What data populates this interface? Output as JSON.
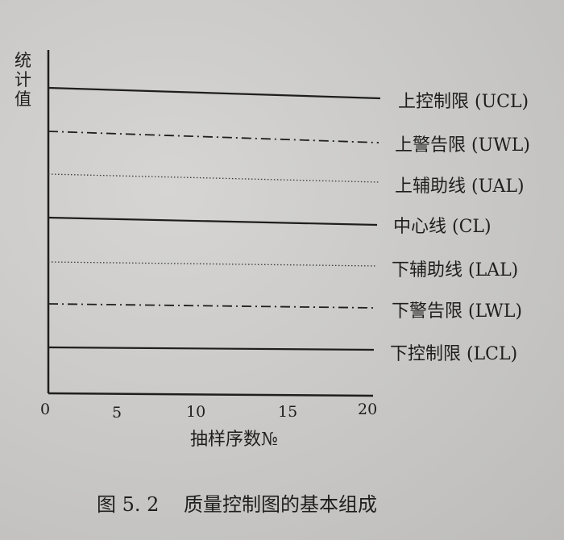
{
  "diagram": {
    "y_axis_label": [
      "统",
      "计",
      "值"
    ],
    "x_axis_label": "抽样序数№",
    "x_ticks": [
      "0",
      "5",
      "10",
      "15",
      "20"
    ],
    "lines": [
      {
        "label": "上控制限 (UCL)",
        "style": "solid"
      },
      {
        "label": "上警告限 (UWL)",
        "style": "dashdot"
      },
      {
        "label": "上辅助线 (UAL)",
        "style": "dotted"
      },
      {
        "label": "中心线 (CL)",
        "style": "solid"
      },
      {
        "label": "下辅助线 (LAL)",
        "style": "dotted"
      },
      {
        "label": "下警告限 (LWL)",
        "style": "dashdot"
      },
      {
        "label": "下控制限 (LCL)",
        "style": "solid"
      }
    ],
    "caption": "图 5. 2    质量控制图的基本组成"
  }
}
